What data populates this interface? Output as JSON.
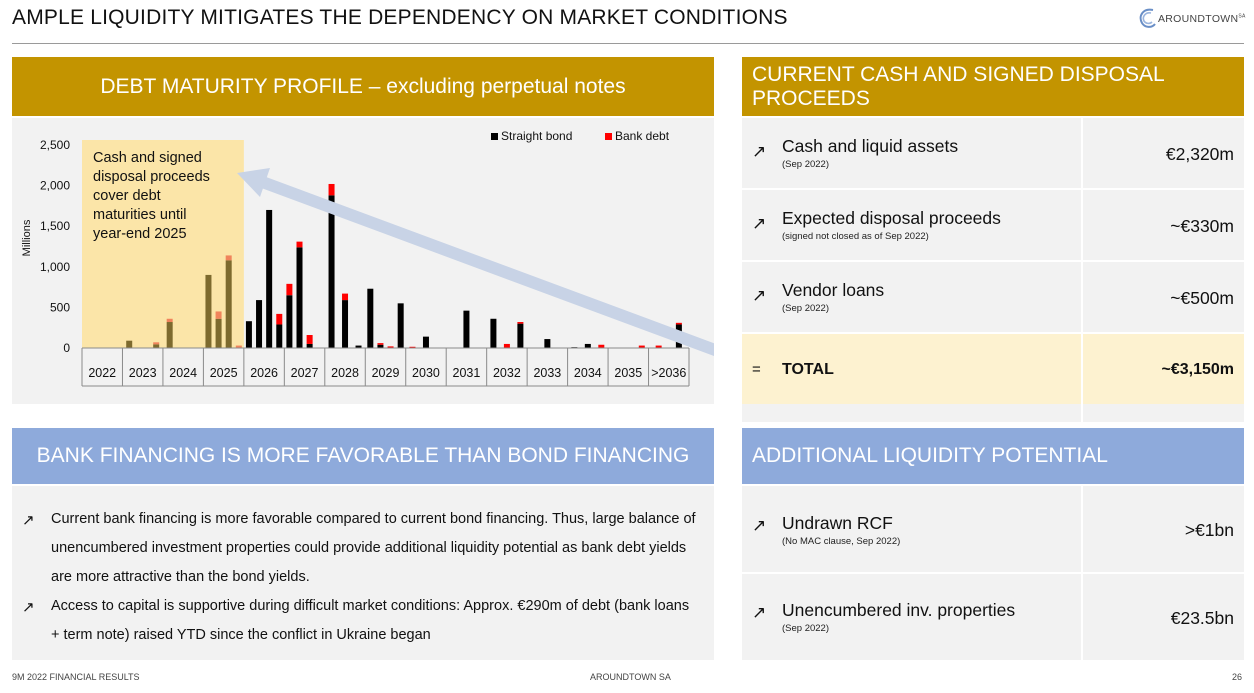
{
  "header": {
    "title": "AMPLE LIQUIDITY MITIGATES THE DEPENDENCY ON MARKET CONDITIONS",
    "logo_text": "AROUNDTOWN",
    "logo_sup": "SA"
  },
  "debt_section": {
    "title": "DEBT MATURITY PROFILE – excluding perpetual notes",
    "callout": [
      "Cash and signed",
      "disposal proceeds",
      "cover debt",
      "maturities until",
      "year-end 2025"
    ]
  },
  "chart_data": {
    "type": "bar",
    "stacked": true,
    "ylabel": "Millions",
    "ylim": [
      0,
      2500
    ],
    "yticks": [
      0,
      500,
      1000,
      1500,
      2000,
      2500
    ],
    "ytick_labels": [
      "0",
      "500",
      "1,000",
      "1,500",
      "2,000",
      "2,500"
    ],
    "categories": [
      "2022",
      "2023",
      "2024",
      "2025",
      "2026",
      "2027",
      "2028",
      "2029",
      "2030",
      "2031",
      "2032",
      "2033",
      "2034",
      "2035",
      ">2036"
    ],
    "grid": false,
    "legend_position": "top-right",
    "highlight_range": [
      "2022",
      "2025"
    ],
    "series": [
      {
        "name": "Straight bond",
        "color": "#000000"
      },
      {
        "name": "Bank debt",
        "color": "#ff0000"
      }
    ],
    "bars": [
      {
        "category": "2022",
        "straight": 0,
        "bank": 0
      },
      {
        "category": "2022",
        "straight": 0,
        "bank": 0
      },
      {
        "category": "2022",
        "straight": 0,
        "bank": 0
      },
      {
        "category": "2022",
        "straight": 0,
        "bank": 0
      },
      {
        "category": "2023",
        "straight": 90,
        "bank": 0
      },
      {
        "category": "2023",
        "straight": 0,
        "bank": 0
      },
      {
        "category": "2023",
        "straight": 45,
        "bank": 25
      },
      {
        "category": "2024",
        "straight": 320,
        "bank": 40
      },
      {
        "category": "2024",
        "straight": 0,
        "bank": 0
      },
      {
        "category": "2024",
        "straight": 0,
        "bank": 0
      },
      {
        "category": "2025",
        "straight": 900,
        "bank": 0
      },
      {
        "category": "2025",
        "straight": 360,
        "bank": 90
      },
      {
        "category": "2025",
        "straight": 1080,
        "bank": 60
      },
      {
        "category": "2025",
        "straight": 0,
        "bank": 30
      },
      {
        "category": "2026",
        "straight": 330,
        "bank": 0
      },
      {
        "category": "2026",
        "straight": 590,
        "bank": 0
      },
      {
        "category": "2026",
        "straight": 1700,
        "bank": 0
      },
      {
        "category": "2026",
        "straight": 290,
        "bank": 130
      },
      {
        "category": "2027",
        "straight": 650,
        "bank": 140
      },
      {
        "category": "2027",
        "straight": 1240,
        "bank": 70
      },
      {
        "category": "2027",
        "straight": 50,
        "bank": 110
      },
      {
        "category": "2027",
        "straight": 0,
        "bank": 0
      },
      {
        "category": "2028",
        "straight": 1880,
        "bank": 140
      },
      {
        "category": "2028",
        "straight": 590,
        "bank": 80
      },
      {
        "category": "2028",
        "straight": 30,
        "bank": 0
      },
      {
        "category": "2029",
        "straight": 730,
        "bank": 0
      },
      {
        "category": "2029",
        "straight": 40,
        "bank": 20
      },
      {
        "category": "2029",
        "straight": 0,
        "bank": 20
      },
      {
        "category": "2029",
        "straight": 550,
        "bank": 0
      },
      {
        "category": "2030",
        "straight": 0,
        "bank": 15
      },
      {
        "category": "2030",
        "straight": 140,
        "bank": 0
      },
      {
        "category": "2030",
        "straight": 0,
        "bank": 0
      },
      {
        "category": "2031",
        "straight": 0,
        "bank": 0
      },
      {
        "category": "2031",
        "straight": 460,
        "bank": 0
      },
      {
        "category": "2031",
        "straight": 0,
        "bank": 0
      },
      {
        "category": "2032",
        "straight": 360,
        "bank": 0
      },
      {
        "category": "2032",
        "straight": 0,
        "bank": 50
      },
      {
        "category": "2032",
        "straight": 300,
        "bank": 20
      },
      {
        "category": "2033",
        "straight": 0,
        "bank": 0
      },
      {
        "category": "2033",
        "straight": 110,
        "bank": 0
      },
      {
        "category": "2033",
        "straight": 0,
        "bank": 0
      },
      {
        "category": "2034",
        "straight": 10,
        "bank": 0
      },
      {
        "category": "2034",
        "straight": 50,
        "bank": 0
      },
      {
        "category": "2034",
        "straight": 0,
        "bank": 40
      },
      {
        "category": "2035",
        "straight": 0,
        "bank": 0
      },
      {
        "category": "2035",
        "straight": 0,
        "bank": 0
      },
      {
        "category": "2035",
        "straight": 0,
        "bank": 30
      },
      {
        "category": ">2036",
        "straight": 0,
        "bank": 30
      },
      {
        "category": ">2036",
        "straight": 290,
        "bank": 20
      }
    ]
  },
  "cash_section": {
    "title": "CURRENT CASH AND SIGNED DISPOSAL PROCEEDS",
    "rows": [
      {
        "arrow": "↗",
        "label": "Cash and liquid assets",
        "sub": "(Sep 2022)",
        "value": "€2,320m"
      },
      {
        "arrow": "↗",
        "label": "Expected disposal proceeds",
        "sub": "(signed not closed as of Sep 2022)",
        "value": "~€330m"
      },
      {
        "arrow": "↗",
        "label": "Vendor loans",
        "sub": "(Sep 2022)",
        "value": "~€500m"
      }
    ],
    "total": {
      "symbol": "=",
      "label": "TOTAL",
      "value": "~€3,150m"
    }
  },
  "liquidity_section": {
    "title": "ADDITIONAL LIQUIDITY POTENTIAL",
    "rows": [
      {
        "arrow": "↗",
        "label": "Undrawn RCF",
        "sub": "(No MAC clause, Sep 2022)",
        "value": ">€1bn"
      },
      {
        "arrow": "↗",
        "label": "Unencumbered inv. properties",
        "sub": "(Sep 2022)",
        "value": "€23.5bn"
      }
    ]
  },
  "bank_section": {
    "title": "BANK FINANCING IS MORE FAVORABLE THAN BOND FINANCING",
    "bullets": [
      {
        "arrow": "↗",
        "text": "Current bank financing is more favorable compared to current bond financing. Thus, large balance of unencumbered investment properties could provide additional liquidity potential as bank debt yields are more attractive than the bond yields."
      },
      {
        "arrow": "↗",
        "text": "Access to capital is supportive during difficult market conditions: Approx. €290m of debt (bank loans + term note) raised YTD since the conflict in Ukraine began"
      }
    ]
  },
  "footer": {
    "left": "9M 2022 FINANCIAL RESULTS",
    "center": "AROUNDTOWN SA",
    "page": "26"
  },
  "colors": {
    "gold": "#c39400",
    "blue": "#8eaadb",
    "panel": "#f2f2f2",
    "highlight": "#fbe5a8",
    "total_row": "#fdf2d0"
  }
}
